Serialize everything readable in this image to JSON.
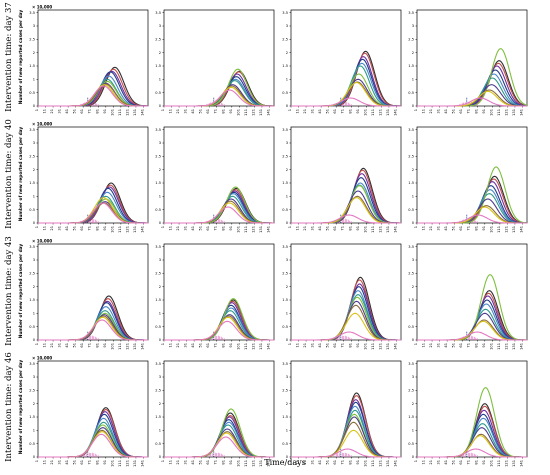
{
  "figure": {
    "row_labels": [
      "Intervention time: day 37",
      "Intervention time: day 40",
      "Intervention time: day 43",
      "Intervention time: day 46"
    ],
    "y_axis_label": "Number of new reported cases per day",
    "x_axis_label": "Time/days",
    "scale_note": "× 10,000"
  },
  "chart_data": {
    "type": "line",
    "layout": "4x4 grid of line charts",
    "rows_vary": "intervention time",
    "columns_vary": "scenario (unlabeled)",
    "x_ticks": [
      1,
      11,
      21,
      31,
      41,
      51,
      61,
      71,
      81,
      91,
      101,
      111,
      121,
      131,
      141
    ],
    "y_ticks": [
      0,
      0.5,
      1,
      1.5,
      2,
      2.5,
      3,
      3.5
    ],
    "xlim": [
      1,
      147
    ],
    "ylim": [
      0,
      3.6
    ],
    "y_multiplier": "× 10,000",
    "reported_cases_bars": {
      "x": [
        45,
        50,
        55,
        58,
        61,
        63,
        65,
        67,
        69,
        71,
        73,
        75,
        77,
        79,
        81
      ],
      "values": [
        0.01,
        0.02,
        0.04,
        0.08,
        0.11,
        0.13,
        0.14,
        0.33,
        0.16,
        0.15,
        0.16,
        0.14,
        0.12,
        0.09,
        0.06
      ]
    },
    "series_colors": [
      "#2f2f2f",
      "#c0504d",
      "#7030a0",
      "#1f3c88",
      "#4a86c8",
      "#2e9a8b",
      "#7fbf3f",
      "#4d3b8f",
      "#8a6d3b",
      "#d9c21a",
      "#e377c2"
    ],
    "panels": [
      {
        "row": 0,
        "col": 0,
        "peaks": [
          1.45,
          1.38,
          1.3,
          1.28,
          1.12,
          1.0,
          0.92,
          0.85,
          0.82,
          0.8,
          0.75
        ],
        "peak_days": [
          103,
          101,
          99,
          97,
          95,
          93,
          93,
          91,
          91,
          89,
          88
        ]
      },
      {
        "row": 0,
        "col": 1,
        "peaks": [
          1.3,
          1.28,
          1.2,
          1.1,
          1.0,
          0.95,
          1.38,
          0.8,
          0.75,
          0.7,
          0.6
        ],
        "peak_days": [
          101,
          100,
          98,
          97,
          96,
          95,
          99,
          92,
          91,
          90,
          88
        ]
      },
      {
        "row": 0,
        "col": 2,
        "peaks": [
          2.05,
          1.98,
          1.85,
          1.75,
          1.6,
          1.5,
          1.2,
          1.0,
          0.9,
          0.88,
          0.3
        ],
        "peak_days": [
          100,
          99,
          97,
          96,
          95,
          93,
          91,
          90,
          89,
          88,
          80
        ]
      },
      {
        "row": 0,
        "col": 3,
        "peaks": [
          1.7,
          1.6,
          1.5,
          1.35,
          1.2,
          1.05,
          2.15,
          0.8,
          0.6,
          0.55,
          0.3
        ],
        "peak_days": [
          110,
          109,
          107,
          105,
          103,
          101,
          112,
          100,
          97,
          95,
          85
        ]
      },
      {
        "row": 1,
        "col": 0,
        "peaks": [
          1.5,
          1.42,
          1.35,
          1.3,
          1.15,
          1.0,
          0.9,
          0.8,
          0.75,
          0.95,
          0.75
        ],
        "peak_days": [
          98,
          97,
          96,
          94,
          93,
          91,
          91,
          90,
          89,
          88,
          87
        ]
      },
      {
        "row": 1,
        "col": 1,
        "peaks": [
          1.3,
          1.25,
          1.2,
          1.15,
          1.1,
          1.0,
          1.35,
          0.9,
          0.82,
          0.75,
          0.6
        ],
        "peak_days": [
          97,
          96,
          95,
          94,
          93,
          92,
          96,
          90,
          89,
          88,
          86
        ]
      },
      {
        "row": 1,
        "col": 2,
        "peaks": [
          2.05,
          1.98,
          1.85,
          1.7,
          1.5,
          1.42,
          1.4,
          1.2,
          1.0,
          0.95,
          0.3
        ],
        "peak_days": [
          97,
          96,
          95,
          94,
          93,
          92,
          92,
          90,
          89,
          88,
          78
        ]
      },
      {
        "row": 1,
        "col": 3,
        "peaks": [
          1.75,
          1.65,
          1.55,
          1.4,
          1.25,
          1.1,
          2.1,
          0.9,
          0.65,
          0.6,
          0.3
        ],
        "peak_days": [
          104,
          103,
          101,
          99,
          98,
          97,
          106,
          95,
          93,
          91,
          82
        ]
      },
      {
        "row": 2,
        "col": 0,
        "peaks": [
          1.65,
          1.55,
          1.45,
          1.4,
          1.25,
          1.1,
          1.0,
          0.95,
          0.9,
          0.85,
          0.75
        ],
        "peak_days": [
          95,
          94,
          93,
          92,
          91,
          90,
          90,
          89,
          88,
          87,
          86
        ]
      },
      {
        "row": 2,
        "col": 1,
        "peaks": [
          1.5,
          1.45,
          1.4,
          1.3,
          1.2,
          1.1,
          1.55,
          0.95,
          0.9,
          0.85,
          0.7
        ],
        "peak_days": [
          93,
          92,
          91,
          90,
          90,
          89,
          93,
          88,
          87,
          86,
          85
        ]
      },
      {
        "row": 2,
        "col": 2,
        "peaks": [
          2.35,
          2.25,
          2.1,
          2.0,
          1.85,
          1.7,
          1.6,
          1.45,
          1.3,
          1.0,
          0.3
        ],
        "peak_days": [
          93,
          92,
          92,
          91,
          90,
          90,
          89,
          88,
          87,
          86,
          78
        ]
      },
      {
        "row": 2,
        "col": 3,
        "peaks": [
          1.85,
          1.75,
          1.65,
          1.5,
          1.35,
          1.15,
          2.45,
          1.0,
          0.75,
          0.7,
          0.3
        ],
        "peak_days": [
          97,
          96,
          95,
          94,
          93,
          92,
          98,
          91,
          90,
          89,
          81
        ]
      },
      {
        "row": 3,
        "col": 0,
        "peaks": [
          1.85,
          1.78,
          1.7,
          1.6,
          1.45,
          1.3,
          1.2,
          1.1,
          1.0,
          0.95,
          0.85
        ],
        "peak_days": [
          91,
          91,
          90,
          89,
          88,
          88,
          87,
          87,
          86,
          86,
          85
        ]
      },
      {
        "row": 3,
        "col": 1,
        "peaks": [
          1.65,
          1.55,
          1.5,
          1.4,
          1.3,
          1.2,
          1.8,
          1.05,
          0.95,
          0.9,
          0.75
        ],
        "peak_days": [
          89,
          89,
          88,
          87,
          87,
          86,
          90,
          85,
          85,
          84,
          83
        ]
      },
      {
        "row": 3,
        "col": 2,
        "peaks": [
          2.4,
          2.3,
          2.15,
          2.05,
          1.9,
          1.75,
          1.6,
          1.5,
          1.3,
          1.0,
          0.3
        ],
        "peak_days": [
          88,
          88,
          87,
          87,
          86,
          86,
          85,
          85,
          84,
          84,
          76
        ]
      },
      {
        "row": 3,
        "col": 3,
        "peaks": [
          2.0,
          1.9,
          1.75,
          1.6,
          1.45,
          1.25,
          2.6,
          1.1,
          0.85,
          0.8,
          0.3
        ],
        "peak_days": [
          91,
          91,
          90,
          89,
          89,
          88,
          92,
          87,
          86,
          85,
          79
        ]
      }
    ]
  }
}
